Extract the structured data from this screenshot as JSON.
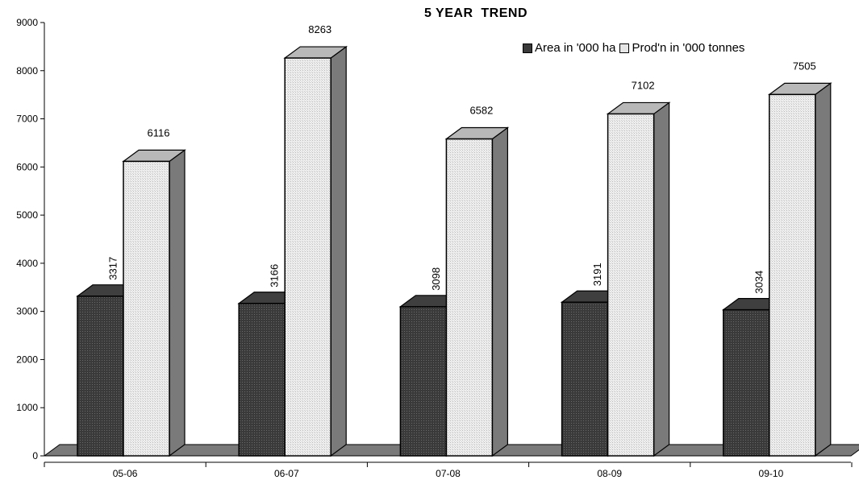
{
  "chart_data": {
    "type": "bar",
    "title": "5 YEAR  TREND",
    "categories": [
      "05-06",
      "06-07",
      "07-08",
      "08-09",
      "09-10"
    ],
    "series": [
      {
        "name": "Area in '000 ha",
        "values": [
          3317,
          3166,
          3098,
          3191,
          3034
        ],
        "color": "#3a3a3a"
      },
      {
        "name": "Prod'n in '000 tonnes",
        "values": [
          6116,
          8263,
          6582,
          7102,
          7505
        ],
        "color": "#e6e6e6"
      }
    ],
    "yticks": [
      0,
      1000,
      2000,
      3000,
      4000,
      5000,
      6000,
      7000,
      8000,
      9000
    ],
    "ylim": [
      0,
      9000
    ],
    "xlabel": "",
    "ylabel": "",
    "legend_position": "top-right",
    "grid": false,
    "side_color": "#7a7a7a",
    "top_color": "#b8b8b8"
  }
}
